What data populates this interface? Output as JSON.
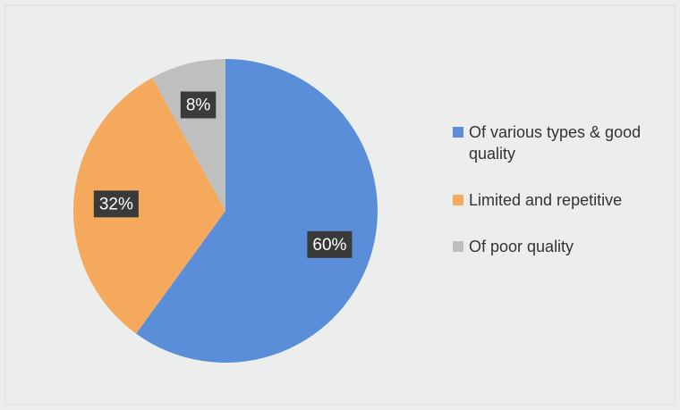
{
  "chart_data": {
    "type": "pie",
    "categories": [
      "Of various types & good quality",
      "Limited and repetitive",
      "Of poor quality"
    ],
    "values": [
      60,
      32,
      8
    ],
    "value_labels": [
      "60%",
      "32%",
      "8%"
    ],
    "colors": [
      "#5b8ed8",
      "#f5a95c",
      "#bfbfbf"
    ],
    "legend": "right"
  }
}
